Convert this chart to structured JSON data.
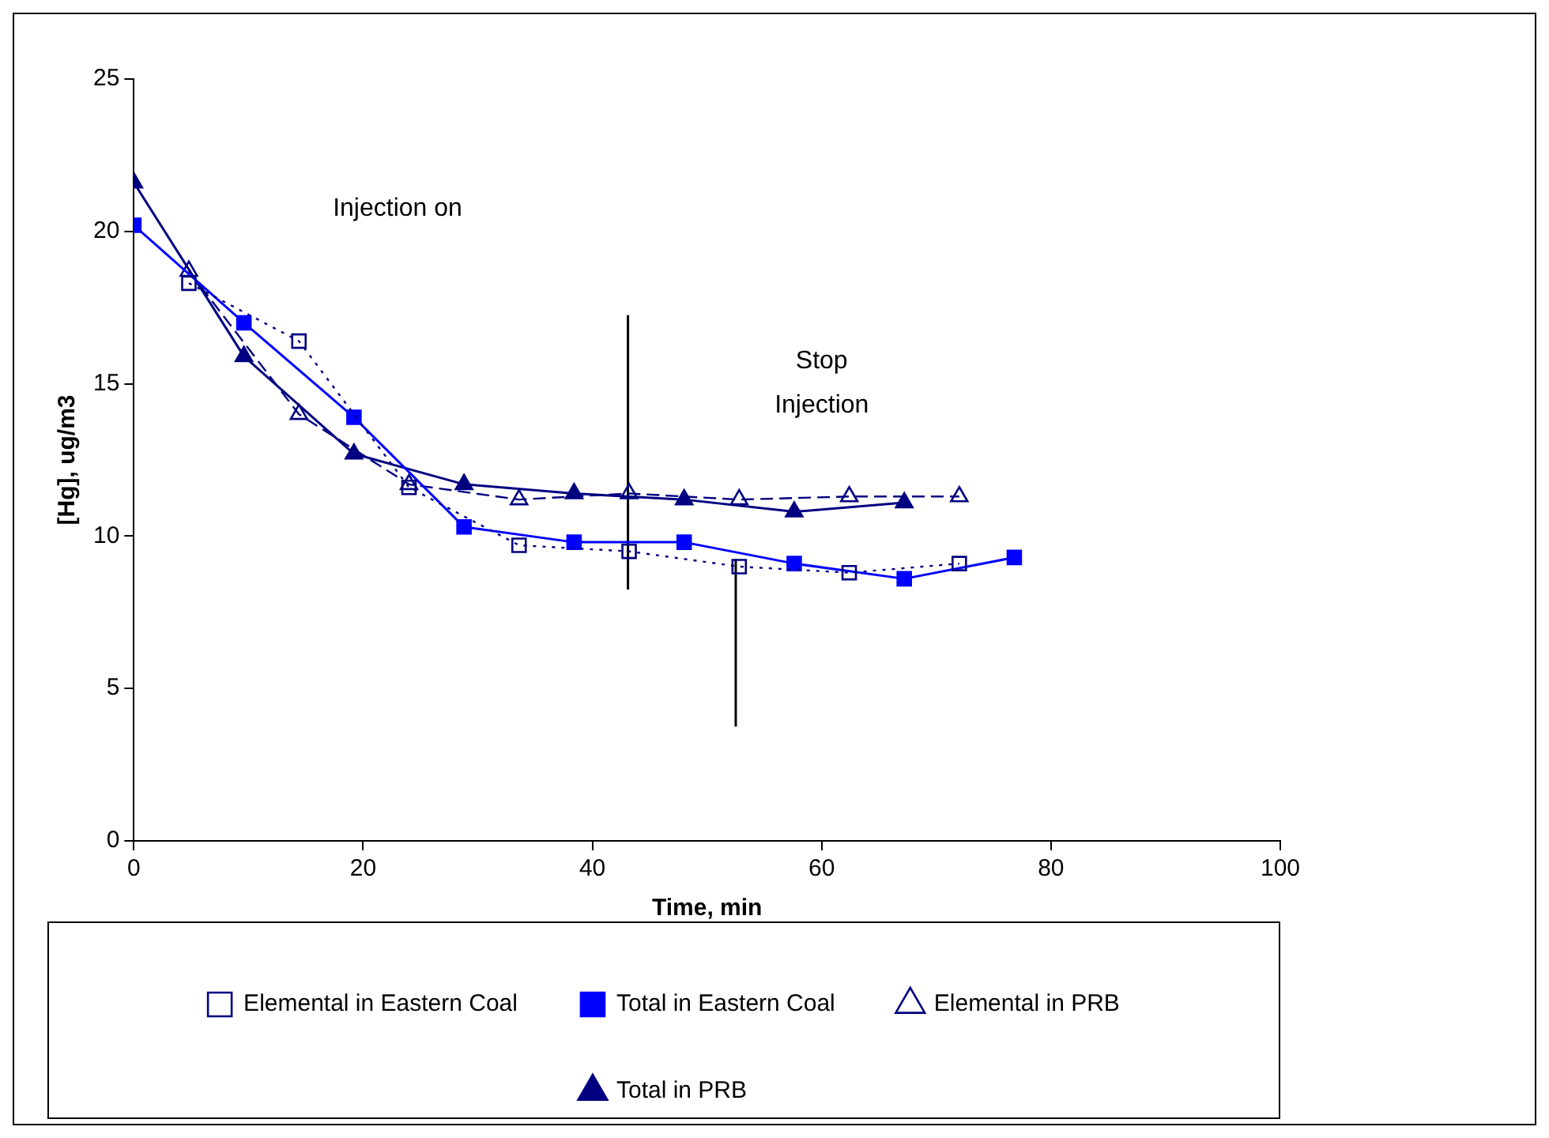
{
  "chart_data": {
    "type": "line",
    "xlabel": "Time, min",
    "ylabel": "[Hg], ug/m3",
    "xlim": [
      0,
      100
    ],
    "xticks": [
      0,
      20,
      40,
      60,
      80,
      100
    ],
    "ylim": [
      0,
      25
    ],
    "yticks": [
      0,
      5,
      10,
      15,
      20,
      25
    ],
    "grid": false,
    "legend": "bottom",
    "series": [
      {
        "name": "Elemental in Eastern Coal",
        "color": "#000080",
        "marker": "square",
        "line_style": "dotted",
        "x": [
          4.8,
          14.4,
          24,
          33.6,
          43.2,
          52.8,
          62.4,
          72
        ],
        "values": [
          18.3,
          16.4,
          11.6,
          9.7,
          9.5,
          9.0,
          8.8,
          9.1
        ]
      },
      {
        "name": "Total in Eastern Coal",
        "color": "#0000ff",
        "marker": "square",
        "line_style": "solid",
        "x": [
          0,
          9.6,
          19.2,
          28.8,
          38.4,
          48,
          57.6,
          67.2,
          76.8
        ],
        "values": [
          20.2,
          17.0,
          13.9,
          10.3,
          9.8,
          9.8,
          9.1,
          8.6,
          9.3
        ]
      },
      {
        "name": "Elemental in PRB",
        "color": "#000080",
        "marker": "triangle",
        "line_style": "dashed",
        "x": [
          4.8,
          14.4,
          24,
          33.6,
          43.2,
          52.8,
          62.4,
          72
        ],
        "values": [
          18.7,
          14.0,
          11.7,
          11.2,
          11.4,
          11.2,
          11.3,
          11.3
        ]
      },
      {
        "name": "Total in PRB",
        "color": "#000080",
        "marker": "triangle",
        "line_style": "solid",
        "x": [
          0,
          9.6,
          19.2,
          28.8,
          38.4,
          48,
          57.6,
          67.2
        ],
        "values": [
          21.6,
          15.9,
          12.7,
          11.7,
          11.4,
          11.2,
          10.8,
          11.1
        ]
      }
    ],
    "ref_lines": [
      {
        "axis": "x",
        "value": 43.1,
        "label": null
      },
      {
        "axis": "x",
        "value": 52.5,
        "label": null
      }
    ],
    "annotations": [
      "Injection on",
      "Stop\nInjection"
    ]
  }
}
